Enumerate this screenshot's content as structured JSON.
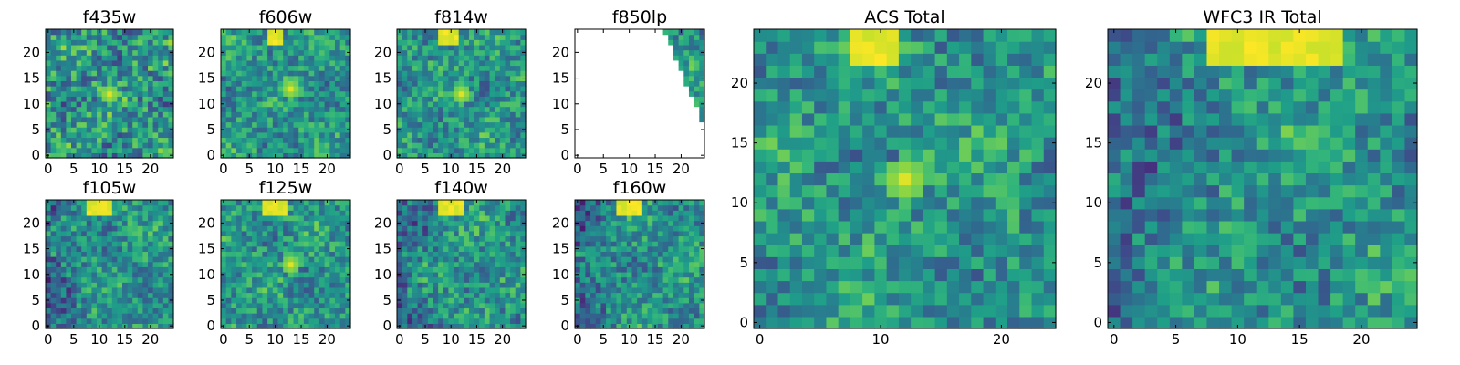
{
  "chart_data": [
    {
      "type": "heatmap",
      "title": "f435w",
      "xticks": [
        0,
        5,
        10,
        15,
        20
      ],
      "yticks": [
        0,
        5,
        10,
        15,
        20
      ],
      "xlim": [
        -0.5,
        24.5
      ],
      "ylim": [
        -0.5,
        24.5
      ],
      "grid_size": [
        25,
        25
      ],
      "colormap": "viridis",
      "features": {
        "bright_spot": [
          12,
          12
        ],
        "noise": "high"
      }
    },
    {
      "type": "heatmap",
      "title": "f606w",
      "xticks": [
        0,
        5,
        10,
        15,
        20
      ],
      "yticks": [
        0,
        5,
        10,
        15,
        20
      ],
      "xlim": [
        -0.5,
        24.5
      ],
      "ylim": [
        -0.5,
        24.5
      ],
      "grid_size": [
        25,
        25
      ],
      "colormap": "viridis",
      "features": {
        "bright_spot": [
          13,
          13
        ],
        "top_bright_band": [
          9,
          11
        ]
      }
    },
    {
      "type": "heatmap",
      "title": "f814w",
      "xticks": [
        0,
        5,
        10,
        15,
        20
      ],
      "yticks": [
        0,
        5,
        10,
        15,
        20
      ],
      "xlim": [
        -0.5,
        24.5
      ],
      "ylim": [
        -0.5,
        24.5
      ],
      "grid_size": [
        25,
        25
      ],
      "colormap": "viridis",
      "features": {
        "bright_spot": [
          12,
          12
        ],
        "top_bright_band": [
          8,
          11
        ]
      }
    },
    {
      "type": "heatmap",
      "title": "f850lp",
      "xticks": [
        0,
        5,
        10,
        15,
        20
      ],
      "yticks": [
        0,
        5,
        10,
        15,
        20
      ],
      "xlim": [
        -0.5,
        24.5
      ],
      "ylim": [
        -0.5,
        24.5
      ],
      "grid_size": [
        25,
        25
      ],
      "colormap": "viridis",
      "features": {
        "coverage": "upper-right wedge only, rest blank"
      }
    },
    {
      "type": "heatmap",
      "title": "f105w",
      "xticks": [
        0,
        5,
        10,
        15,
        20
      ],
      "yticks": [
        0,
        5,
        10,
        15,
        20
      ],
      "xlim": [
        -0.5,
        24.5
      ],
      "ylim": [
        -0.5,
        24.5
      ],
      "grid_size": [
        25,
        25
      ],
      "colormap": "viridis",
      "features": {
        "top_bright_band": [
          8,
          12
        ],
        "dark_left": true
      }
    },
    {
      "type": "heatmap",
      "title": "f125w",
      "xticks": [
        0,
        5,
        10,
        15,
        20
      ],
      "yticks": [
        0,
        5,
        10,
        15,
        20
      ],
      "xlim": [
        -0.5,
        24.5
      ],
      "ylim": [
        -0.5,
        24.5
      ],
      "grid_size": [
        25,
        25
      ],
      "colormap": "viridis",
      "features": {
        "top_bright_band": [
          8,
          12
        ],
        "bright_spot": [
          13,
          12
        ]
      }
    },
    {
      "type": "heatmap",
      "title": "f140w",
      "xticks": [
        0,
        5,
        10,
        15,
        20
      ],
      "yticks": [
        0,
        5,
        10,
        15,
        20
      ],
      "xlim": [
        -0.5,
        24.5
      ],
      "ylim": [
        -0.5,
        24.5
      ],
      "grid_size": [
        25,
        25
      ],
      "colormap": "viridis",
      "features": {
        "top_bright_band": [
          8,
          12
        ],
        "dark_left": true
      }
    },
    {
      "type": "heatmap",
      "title": "f160w",
      "xticks": [
        0,
        5,
        10,
        15,
        20
      ],
      "yticks": [
        0,
        5,
        10,
        15,
        20
      ],
      "xlim": [
        -0.5,
        24.5
      ],
      "ylim": [
        -0.5,
        24.5
      ],
      "grid_size": [
        25,
        25
      ],
      "colormap": "viridis",
      "features": {
        "top_bright_band": [
          8,
          12
        ],
        "dark_left": true
      }
    },
    {
      "type": "heatmap",
      "title": "ACS Total",
      "xticks": [
        0,
        10,
        20
      ],
      "yticks": [
        0,
        5,
        10,
        15,
        20
      ],
      "xlim": [
        -0.5,
        24.5
      ],
      "ylim": [
        -0.5,
        24.5
      ],
      "grid_size": [
        25,
        25
      ],
      "colormap": "viridis",
      "features": {
        "top_bright_band": [
          8,
          11
        ],
        "bright_spot": [
          12,
          12
        ]
      }
    },
    {
      "type": "heatmap",
      "title": "WFC3 IR Total",
      "xticks": [
        0,
        5,
        10,
        15,
        20
      ],
      "yticks": [
        0,
        5,
        10,
        15,
        20
      ],
      "xlim": [
        -0.5,
        24.5
      ],
      "ylim": [
        -0.5,
        24.5
      ],
      "grid_size": [
        25,
        25
      ],
      "colormap": "viridis",
      "features": {
        "top_bright_band": [
          8,
          18
        ],
        "dark_left": true
      }
    }
  ]
}
